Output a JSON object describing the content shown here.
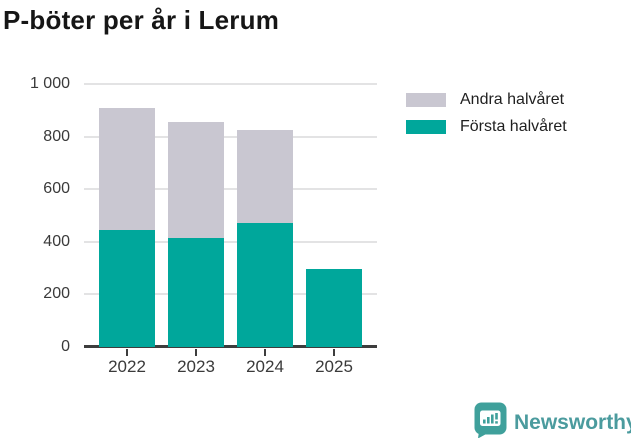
{
  "title": "P-böter per år i Lerum",
  "colors": {
    "first_half": "#00A79B",
    "second_half": "#C9C7D1",
    "axis": "#3D3D3D",
    "gridline": "#E3E3E4",
    "logo_teal": "#3FA09B",
    "logo_text_teal": "#4B9B9E"
  },
  "chart_data": {
    "type": "bar",
    "stacked": true,
    "title": "P-böter per år i Lerum",
    "categories": [
      "2022",
      "2023",
      "2024",
      "2025"
    ],
    "series": [
      {
        "name": "Första halvåret",
        "color": "#00A79B",
        "values": [
          445,
          415,
          470,
          295
        ]
      },
      {
        "name": "Andra halvåret",
        "color": "#C9C7D1",
        "values": [
          465,
          440,
          355,
          0
        ]
      }
    ],
    "totals": [
      910,
      855,
      825,
      295
    ],
    "xlabel": "",
    "ylabel": "",
    "ylim": [
      0,
      1000
    ],
    "yticks": [
      0,
      200,
      400,
      600,
      800,
      1000
    ],
    "ytick_labels": [
      "0",
      "200",
      "400",
      "600",
      "800",
      "1 000"
    ],
    "grid": true,
    "legend_position": "right"
  },
  "legend": {
    "items": [
      {
        "label": "Andra halvåret",
        "color": "#C9C7D1",
        "series": "Andra halvåret"
      },
      {
        "label": "Första halvåret",
        "color": "#00A79B",
        "series": "Första halvåret"
      }
    ]
  },
  "footer": {
    "brand": "Newsworthy"
  }
}
